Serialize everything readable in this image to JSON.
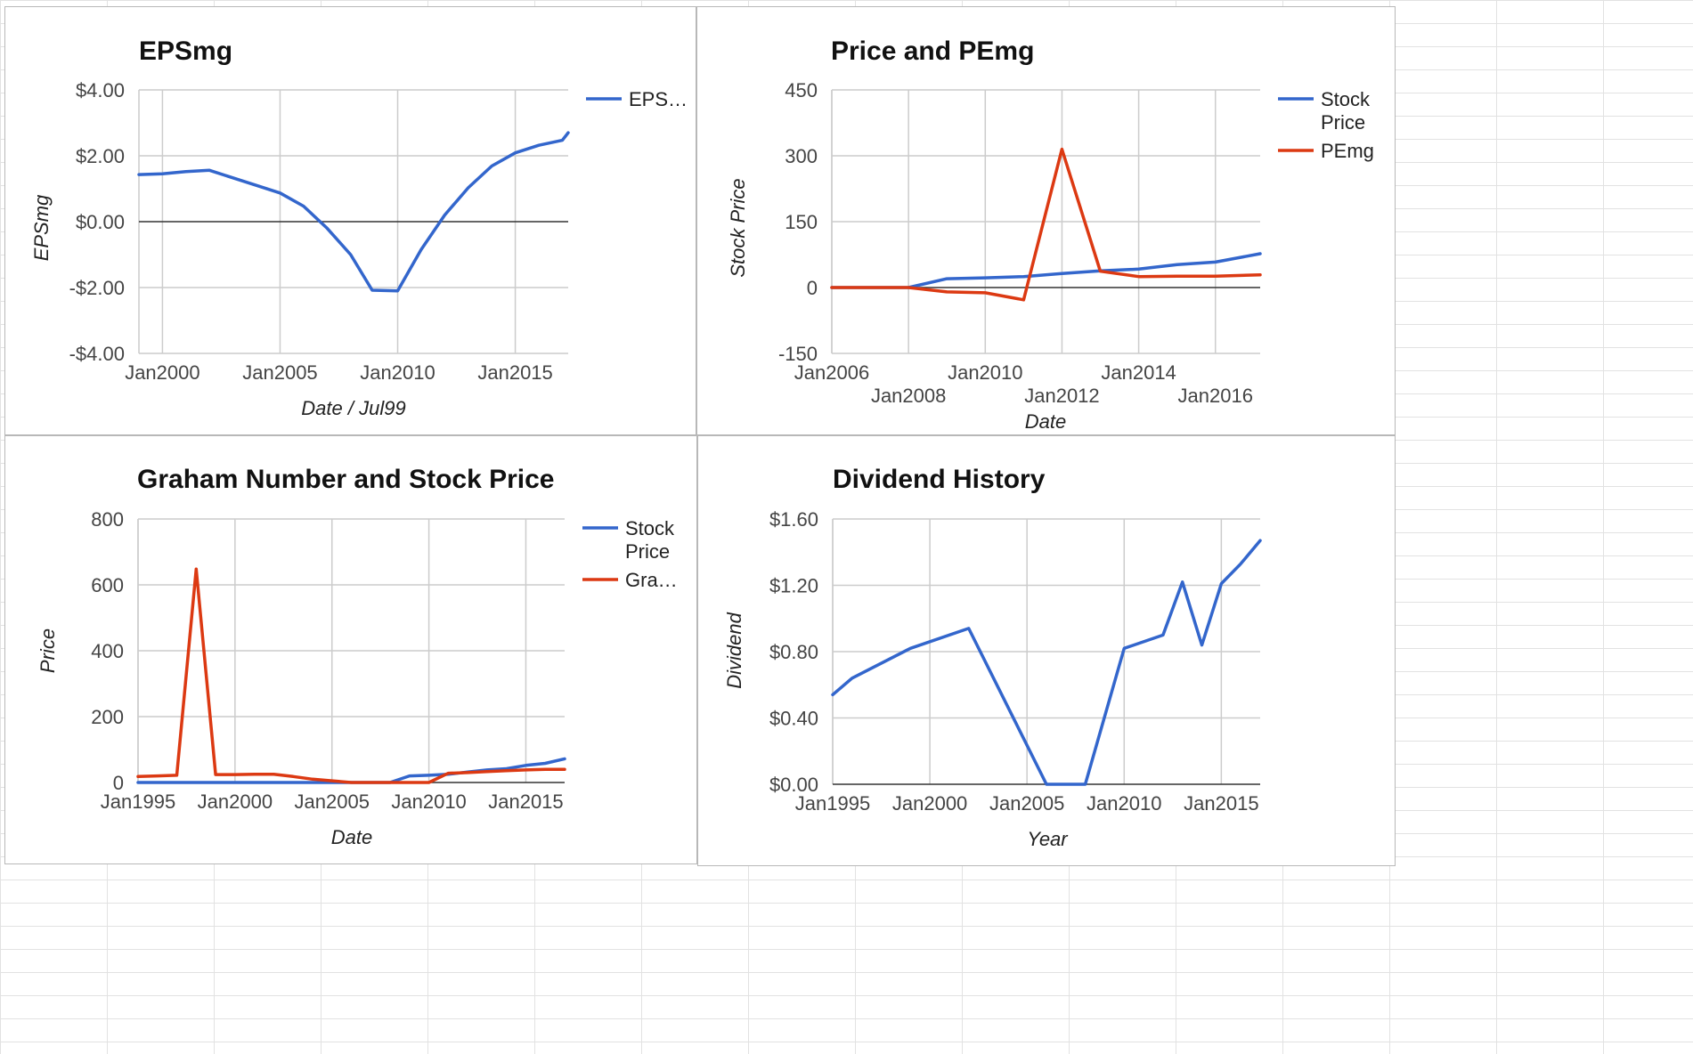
{
  "colors": {
    "blue": "#3366cc",
    "red": "#dc3912",
    "grid": "#cccccc",
    "baseline": "#333333"
  },
  "chart_data": [
    {
      "type": "line",
      "title": "EPSmg",
      "xlabel": "Date / Jul99",
      "ylabel": "EPSmg",
      "x_ticks": [
        "Jan2000",
        "Jan2005",
        "Jan2010",
        "Jan2015"
      ],
      "y_ticks": [
        "$4.00",
        "$2.00",
        "$0.00",
        "-$2.00",
        "-$4.00"
      ],
      "xlim": [
        "1999-01",
        "2017-04"
      ],
      "ylim": [
        -4,
        4
      ],
      "legend_position": "right",
      "series": [
        {
          "name": "EPS…",
          "color": "#3366cc",
          "points": [
            [
              "1999-01",
              1.43
            ],
            [
              "2000-01",
              1.45
            ],
            [
              "2001-01",
              1.52
            ],
            [
              "2002-01",
              1.56
            ],
            [
              "2003-01",
              1.33
            ],
            [
              "2004-01",
              1.1
            ],
            [
              "2005-01",
              0.87
            ],
            [
              "2006-01",
              0.47
            ],
            [
              "2007-01",
              -0.2
            ],
            [
              "2008-01",
              -1.0
            ],
            [
              "2008-12",
              -2.08
            ],
            [
              "2010-01",
              -2.1
            ],
            [
              "2011-01",
              -0.85
            ],
            [
              "2012-01",
              0.2
            ],
            [
              "2013-01",
              1.03
            ],
            [
              "2014-01",
              1.69
            ],
            [
              "2015-01",
              2.09
            ],
            [
              "2016-01",
              2.32
            ],
            [
              "2017-01",
              2.47
            ],
            [
              "2017-04",
              2.7
            ]
          ]
        }
      ]
    },
    {
      "type": "line",
      "title": "Price and PEmg",
      "xlabel": "Date",
      "ylabel": "Stock Price",
      "x_ticks": [
        "Jan2006",
        "Jan2008",
        "Jan2010",
        "Jan2012",
        "Jan2014",
        "Jan2016"
      ],
      "y_ticks": [
        "450",
        "300",
        "150",
        "0",
        "-150"
      ],
      "xlim": [
        "2006-01",
        "2017-03"
      ],
      "ylim": [
        -150,
        450
      ],
      "legend_position": "right",
      "series": [
        {
          "name": "Stock Price",
          "color": "#3366cc",
          "points": [
            [
              "2006-01",
              0
            ],
            [
              "2007-01",
              0
            ],
            [
              "2008-01",
              0
            ],
            [
              "2009-01",
              20
            ],
            [
              "2010-01",
              22
            ],
            [
              "2011-01",
              25
            ],
            [
              "2012-01",
              32
            ],
            [
              "2013-01",
              38
            ],
            [
              "2014-01",
              42
            ],
            [
              "2015-01",
              52
            ],
            [
              "2016-01",
              58
            ],
            [
              "2017-03",
              77
            ]
          ]
        },
        {
          "name": "PEmg",
          "color": "#dc3912",
          "points": [
            [
              "2006-01",
              0
            ],
            [
              "2007-01",
              0
            ],
            [
              "2008-01",
              0
            ],
            [
              "2009-01",
              -10
            ],
            [
              "2010-01",
              -12
            ],
            [
              "2011-01",
              -28
            ],
            [
              "2012-01",
              315
            ],
            [
              "2013-01",
              37
            ],
            [
              "2014-01",
              25
            ],
            [
              "2015-01",
              26
            ],
            [
              "2016-01",
              26
            ],
            [
              "2017-03",
              29
            ]
          ]
        }
      ]
    },
    {
      "type": "line",
      "title": "Graham Number and Stock Price",
      "xlabel": "Date",
      "ylabel": "Price",
      "x_ticks": [
        "Jan1995",
        "Jan2000",
        "Jan2005",
        "Jan2010",
        "Jan2015"
      ],
      "y_ticks": [
        "800",
        "600",
        "400",
        "200",
        "0"
      ],
      "xlim": [
        "1995-01",
        "2017-01"
      ],
      "ylim": [
        0,
        800
      ],
      "legend_position": "right",
      "series": [
        {
          "name": "Stock Price",
          "color": "#3366cc",
          "points": [
            [
              "1995-01",
              0
            ],
            [
              "2000-01",
              0
            ],
            [
              "2005-01",
              0
            ],
            [
              "2008-01",
              0
            ],
            [
              "2009-01",
              20
            ],
            [
              "2010-01",
              22
            ],
            [
              "2011-01",
              25
            ],
            [
              "2012-01",
              32
            ],
            [
              "2013-01",
              38
            ],
            [
              "2014-01",
              42
            ],
            [
              "2015-01",
              52
            ],
            [
              "2016-01",
              58
            ],
            [
              "2017-01",
              72
            ]
          ]
        },
        {
          "name": "Gra…",
          "color": "#dc3912",
          "points": [
            [
              "1995-01",
              18
            ],
            [
              "1996-01",
              20
            ],
            [
              "1997-01",
              22
            ],
            [
              "1998-01",
              648
            ],
            [
              "1999-01",
              24
            ],
            [
              "2000-01",
              24
            ],
            [
              "2001-01",
              25
            ],
            [
              "2002-01",
              25
            ],
            [
              "2003-01",
              18
            ],
            [
              "2004-01",
              10
            ],
            [
              "2005-01",
              5
            ],
            [
              "2006-01",
              0
            ],
            [
              "2007-01",
              0
            ],
            [
              "2008-01",
              0
            ],
            [
              "2009-01",
              0
            ],
            [
              "2010-01",
              0
            ],
            [
              "2011-01",
              28
            ],
            [
              "2012-01",
              30
            ],
            [
              "2013-01",
              33
            ],
            [
              "2014-01",
              36
            ],
            [
              "2015-01",
              38
            ],
            [
              "2016-01",
              40
            ],
            [
              "2017-01",
              40
            ]
          ]
        }
      ]
    },
    {
      "type": "line",
      "title": "Dividend History",
      "xlabel": "Year",
      "ylabel": "Dividend",
      "x_ticks": [
        "Jan1995",
        "Jan2000",
        "Jan2005",
        "Jan2010",
        "Jan2015"
      ],
      "y_ticks": [
        "$1.60",
        "$1.20",
        "$0.80",
        "$0.40",
        "$0.00"
      ],
      "xlim": [
        "1995-01",
        "2017-01"
      ],
      "ylim": [
        0,
        1.6
      ],
      "legend_position": "none",
      "series": [
        {
          "name": "",
          "color": "#3366cc",
          "points": [
            [
              "1995-01",
              0.54
            ],
            [
              "1996-01",
              0.64
            ],
            [
              "1999-01",
              0.82
            ],
            [
              "2002-01",
              0.94
            ],
            [
              "2006-01",
              0
            ],
            [
              "2008-01",
              0
            ],
            [
              "2010-01",
              0.82
            ],
            [
              "2012-01",
              0.9
            ],
            [
              "2013-01",
              1.22
            ],
            [
              "2014-01",
              0.84
            ],
            [
              "2015-01",
              1.21
            ],
            [
              "2016-01",
              1.33
            ],
            [
              "2017-01",
              1.47
            ]
          ]
        }
      ]
    }
  ]
}
